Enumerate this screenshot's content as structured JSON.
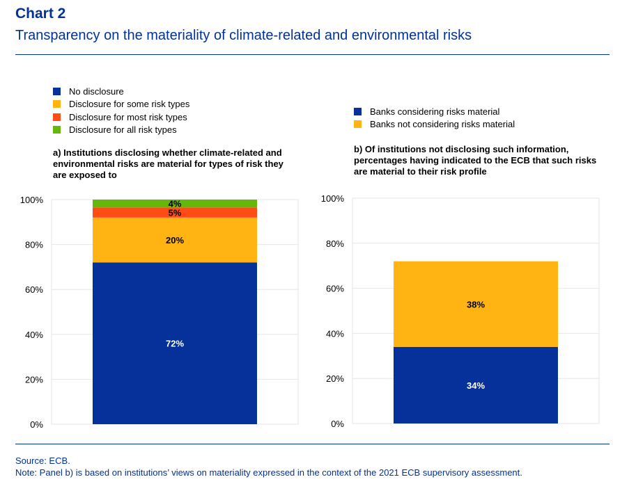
{
  "header": {
    "title": "Chart 2",
    "subtitle": "Transparency on the materiality of climate-related and environmental risks"
  },
  "colors": {
    "blue": "#06309a",
    "yellow": "#ffb414",
    "red": "#ff4b14",
    "green": "#65b80a",
    "title": "#003299"
  },
  "chart_data": [
    {
      "type": "bar",
      "stacked": true,
      "title": "a) Institutions disclosing whether climate-related and environmental risks are material for types of risk they are exposed to",
      "ylim": [
        0,
        100
      ],
      "yticks": [
        "0%",
        "20%",
        "40%",
        "60%",
        "80%",
        "100%"
      ],
      "grid": true,
      "legend": "top-left",
      "series": [
        {
          "name": "No disclosure",
          "value": 72,
          "label": "72%",
          "color": "#06309a",
          "labelColor": "#fff"
        },
        {
          "name": "Disclosure for some risk types",
          "value": 20,
          "label": "20%",
          "color": "#ffb414",
          "labelColor": "#000"
        },
        {
          "name": "Disclosure for most risk types",
          "value": 4.5,
          "label": "5%",
          "color": "#ff4b14",
          "labelColor": "#000"
        },
        {
          "name": "Disclosure for all risk types",
          "value": 3.5,
          "label": "4%",
          "color": "#65b80a",
          "labelColor": "#000"
        }
      ]
    },
    {
      "type": "bar",
      "stacked": true,
      "title": "b) Of institutions not disclosing such information, percentages having indicated to the ECB that such risks are material to their risk profile",
      "ylim": [
        0,
        100
      ],
      "yticks": [
        "0%",
        "20%",
        "40%",
        "60%",
        "80%",
        "100%"
      ],
      "grid": true,
      "legend": "top-left",
      "series": [
        {
          "name": "Banks considering risks material",
          "value": 34,
          "label": "34%",
          "color": "#06309a",
          "labelColor": "#fff"
        },
        {
          "name": "Banks not considering risks material",
          "value": 38,
          "label": "38%",
          "color": "#ffb414",
          "labelColor": "#000"
        }
      ]
    }
  ],
  "footer": {
    "source": "Source: ECB.",
    "note": "Note: Panel b) is based on institutions’ views on materiality expressed in the context of the 2021 ECB supervisory assessment."
  }
}
